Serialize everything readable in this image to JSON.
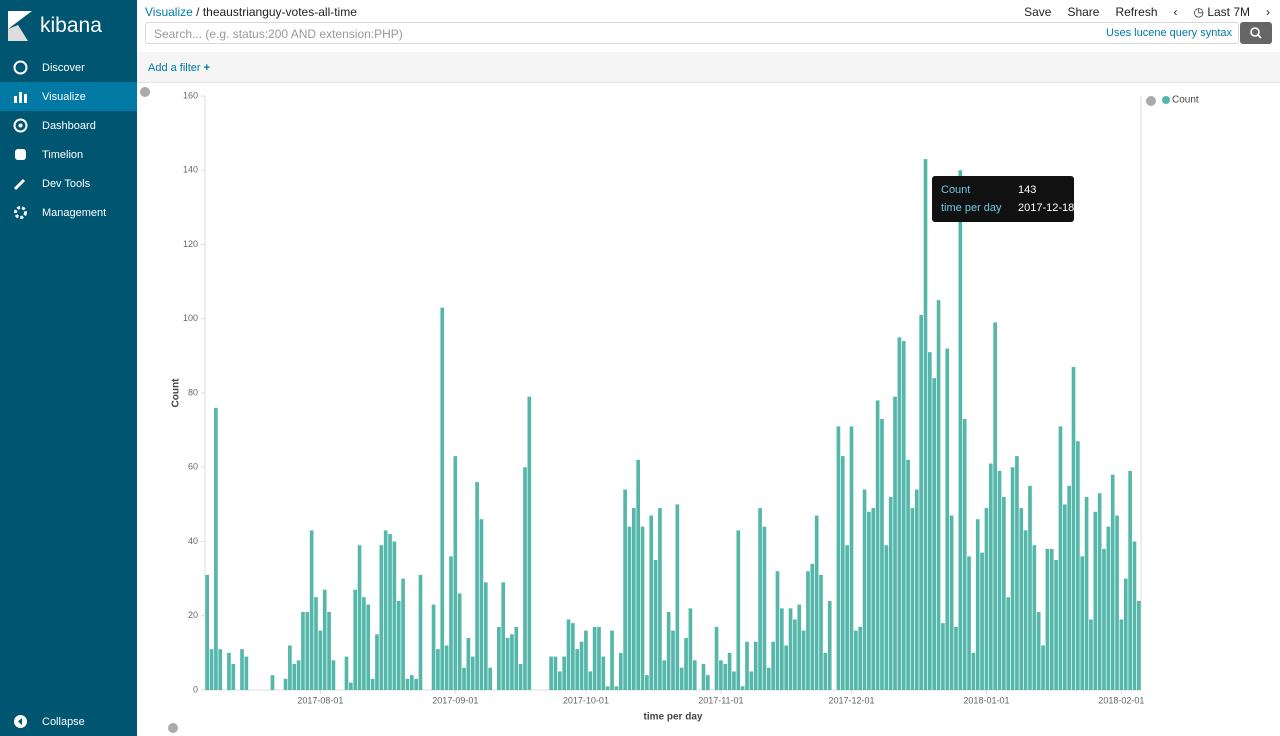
{
  "sidebar": {
    "logo": "kibana",
    "items": [
      "Discover",
      "Visualize",
      "Dashboard",
      "Timelion",
      "Dev Tools",
      "Management"
    ],
    "collapse": "Collapse"
  },
  "header": {
    "breadcrumb": [
      "Visualize",
      "theaustrianguy-votes-all-time"
    ],
    "actions": [
      "Save",
      "Share",
      "Refresh"
    ],
    "time": "Last 7M"
  },
  "search": {
    "placeholder": "Search... (e.g. status:200 AND extension:PHP)",
    "syntax": "Uses lucene query syntax"
  },
  "filter": {
    "add": "Add a filter"
  },
  "tooltip": {
    "rows": [
      {
        "label": "Count",
        "value": "143"
      },
      {
        "label": "time per day",
        "value": "2017-12-18"
      }
    ]
  },
  "chart_data": {
    "type": "bar",
    "y_label": "Count",
    "x_label": "time per day",
    "series": [
      {
        "name": "Count",
        "color": "#54b7aa",
        "values": [
          31,
          11,
          76,
          11,
          0,
          10,
          7,
          0,
          11,
          9,
          0,
          0,
          0,
          0,
          0,
          4,
          0,
          0,
          3,
          12,
          7,
          8,
          21,
          21,
          43,
          25,
          16,
          27,
          21,
          8,
          0,
          0,
          9,
          2,
          27,
          39,
          25,
          23,
          3,
          15,
          39,
          43,
          42,
          40,
          24,
          30,
          3,
          4,
          3,
          31,
          0,
          0,
          23,
          11,
          103,
          12,
          36,
          63,
          26,
          6,
          14,
          9,
          56,
          46,
          29,
          6,
          0,
          17,
          29,
          14,
          15,
          17,
          7,
          60,
          79,
          0,
          0,
          0,
          0,
          9,
          9,
          5,
          9,
          19,
          18,
          11,
          13,
          16,
          5,
          17,
          17,
          9,
          1,
          16,
          1,
          10,
          54,
          44,
          49,
          62,
          44,
          4,
          47,
          35,
          49,
          8,
          21,
          16,
          50,
          6,
          14,
          22,
          8,
          0,
          7,
          4,
          0,
          17,
          8,
          7,
          10,
          5,
          43,
          1,
          13,
          5,
          13,
          49,
          44,
          6,
          13,
          32,
          22,
          12,
          22,
          19,
          23,
          16,
          32,
          34,
          47,
          31,
          10,
          24,
          0,
          71,
          63,
          39,
          71,
          16,
          17,
          54,
          48,
          49,
          78,
          73,
          39,
          52,
          79,
          95,
          94,
          62,
          49,
          54,
          101,
          143,
          91,
          84,
          105,
          18,
          92,
          47,
          17,
          140,
          73,
          36,
          10,
          46,
          37,
          49,
          61,
          99,
          59,
          52,
          25,
          60,
          63,
          49,
          43,
          55,
          39,
          21,
          12,
          38,
          38,
          35,
          71,
          50,
          55,
          87,
          67,
          36,
          52,
          19,
          48,
          53,
          38,
          44,
          58,
          47,
          19,
          30,
          59,
          40,
          24
        ]
      }
    ],
    "x": [
      "2017-07-06",
      "2017-07-07",
      "2017-07-08",
      "2017-07-09",
      "2017-07-10",
      "2017-07-11",
      "2017-07-12",
      "2017-07-13",
      "2017-07-14",
      "2017-07-15",
      "2017-07-16",
      "2017-07-17",
      "2017-07-18",
      "2017-07-19",
      "2017-07-20",
      "2017-07-21",
      "2017-07-22",
      "2017-07-23",
      "2017-07-24",
      "2017-07-25",
      "2017-07-26",
      "2017-07-27",
      "2017-07-28",
      "2017-07-29",
      "2017-07-30",
      "2017-07-31",
      "2017-08-01",
      "2017-08-02",
      "2017-08-03",
      "2017-08-04",
      "2017-08-05",
      "2017-08-06",
      "2017-08-07",
      "2017-08-08",
      "2017-08-09",
      "2017-08-10",
      "2017-08-11",
      "2017-08-12",
      "2017-08-13",
      "2017-08-14",
      "2017-08-15",
      "2017-08-16",
      "2017-08-17",
      "2017-08-18",
      "2017-08-19",
      "2017-08-20",
      "2017-08-21",
      "2017-08-22",
      "2017-08-23",
      "2017-08-24",
      "2017-08-25",
      "2017-08-26",
      "2017-08-27",
      "2017-08-28",
      "2017-08-29",
      "2017-08-30",
      "2017-08-31",
      "2017-09-01",
      "2017-09-02",
      "2017-09-03",
      "2017-09-04",
      "2017-09-05",
      "2017-09-06",
      "2017-09-07",
      "2017-09-08",
      "2017-09-09",
      "2017-09-10",
      "2017-09-11",
      "2017-09-12",
      "2017-09-13",
      "2017-09-14",
      "2017-09-15",
      "2017-09-16",
      "2017-09-17",
      "2017-09-18",
      "2017-09-19",
      "2017-09-20",
      "2017-09-21",
      "2017-09-22",
      "2017-09-23",
      "2017-09-24",
      "2017-09-25",
      "2017-09-26",
      "2017-09-27",
      "2017-09-28",
      "2017-09-29",
      "2017-09-30",
      "2017-10-01",
      "2017-10-02",
      "2017-10-03",
      "2017-10-04",
      "2017-10-05",
      "2017-10-06",
      "2017-10-07",
      "2017-10-08",
      "2017-10-09",
      "2017-10-10",
      "2017-10-11",
      "2017-10-12",
      "2017-10-13",
      "2017-10-14",
      "2017-10-15",
      "2017-10-16",
      "2017-10-17",
      "2017-10-18",
      "2017-10-19",
      "2017-10-20",
      "2017-10-21",
      "2017-10-22",
      "2017-10-23",
      "2017-10-24",
      "2017-10-25",
      "2017-10-26",
      "2017-10-27",
      "2017-10-28",
      "2017-10-29",
      "2017-10-30",
      "2017-10-31",
      "2017-11-01",
      "2017-11-02",
      "2017-11-03",
      "2017-11-04",
      "2017-11-05",
      "2017-11-06",
      "2017-11-07",
      "2017-11-08",
      "2017-11-09",
      "2017-11-10",
      "2017-11-11",
      "2017-11-12",
      "2017-11-13",
      "2017-11-14",
      "2017-11-15",
      "2017-11-16",
      "2017-11-17",
      "2017-11-18",
      "2017-11-19",
      "2017-11-20",
      "2017-11-21",
      "2017-11-22",
      "2017-11-23",
      "2017-11-24",
      "2017-11-25",
      "2017-11-26",
      "2017-11-27",
      "2017-11-28",
      "2017-11-29",
      "2017-11-30",
      "2017-12-01",
      "2017-12-02",
      "2017-12-03",
      "2017-12-04",
      "2017-12-05",
      "2017-12-06",
      "2017-12-07",
      "2017-12-08",
      "2017-12-09",
      "2017-12-10",
      "2017-12-11",
      "2017-12-12",
      "2017-12-13",
      "2017-12-14",
      "2017-12-15",
      "2017-12-16",
      "2017-12-17",
      "2017-12-18",
      "2017-12-19",
      "2017-12-20",
      "2017-12-21",
      "2017-12-22",
      "2017-12-23",
      "2017-12-24",
      "2017-12-25",
      "2017-12-26",
      "2017-12-27",
      "2017-12-28",
      "2017-12-29",
      "2017-12-30",
      "2017-12-31",
      "2018-01-01",
      "2018-01-02",
      "2018-01-03",
      "2018-01-04",
      "2018-01-05",
      "2018-01-06",
      "2018-01-07",
      "2018-01-08",
      "2018-01-09",
      "2018-01-10",
      "2018-01-11",
      "2018-01-12",
      "2018-01-13",
      "2018-01-14",
      "2018-01-15",
      "2018-01-16",
      "2018-01-17",
      "2018-01-18",
      "2018-01-19",
      "2018-01-20",
      "2018-01-21",
      "2018-01-22",
      "2018-01-23",
      "2018-01-24",
      "2018-01-25",
      "2018-01-26",
      "2018-01-27",
      "2018-01-28",
      "2018-01-29",
      "2018-01-30",
      "2018-01-31",
      "2018-02-01",
      "2018-02-02",
      "2018-02-03",
      "2018-02-04",
      "2018-02-05"
    ],
    "xlim": [
      "2017-07-06",
      "2018-02-06"
    ],
    "xticks": [
      "2017-08-01",
      "2017-09-01",
      "2017-10-01",
      "2017-11-01",
      "2017-12-01",
      "2018-01-01",
      "2018-02-01"
    ],
    "ylim": [
      0,
      160
    ],
    "yticks": [
      0,
      20,
      40,
      60,
      80,
      100,
      120,
      140,
      160
    ],
    "grid": false,
    "legend": "top-right"
  }
}
